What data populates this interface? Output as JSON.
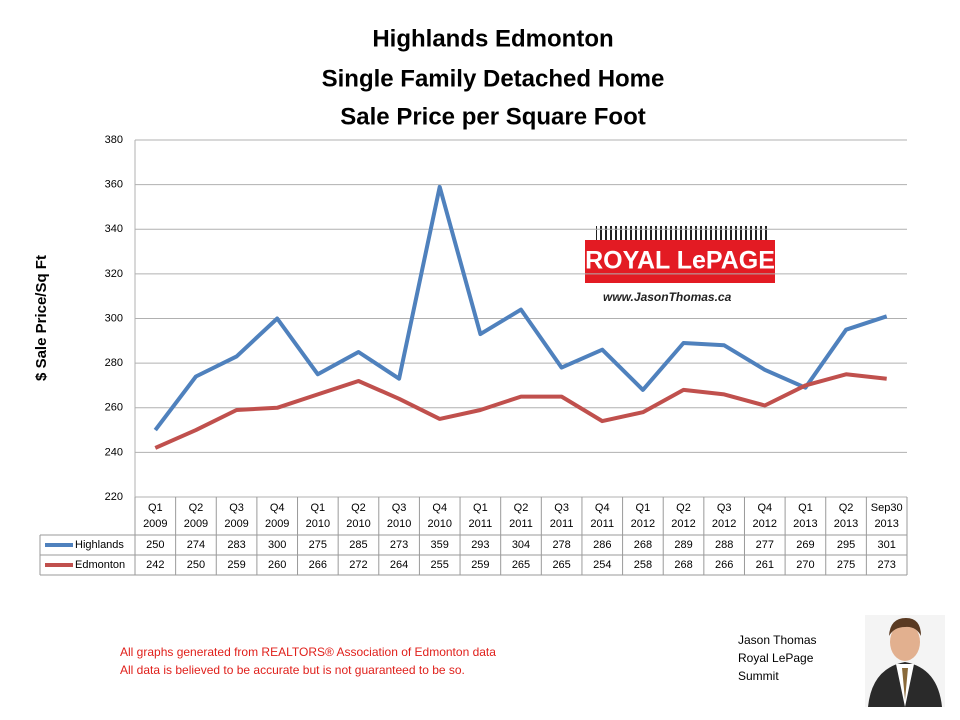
{
  "chart_data": {
    "type": "line",
    "title": [
      "Highlands Edmonton",
      "Single Family Detached Home",
      "Sale Price per Square Foot"
    ],
    "y_label": "$ Sale Price/Sq Ft",
    "categories": [
      [
        "Q1",
        "2009"
      ],
      [
        "Q2",
        "2009"
      ],
      [
        "Q3",
        "2009"
      ],
      [
        "Q4",
        "2009"
      ],
      [
        "Q1",
        "2010"
      ],
      [
        "Q2",
        "2010"
      ],
      [
        "Q3",
        "2010"
      ],
      [
        "Q4",
        "2010"
      ],
      [
        "Q1",
        "2011"
      ],
      [
        "Q2",
        "2011"
      ],
      [
        "Q3",
        "2011"
      ],
      [
        "Q4",
        "2011"
      ],
      [
        "Q1",
        "2012"
      ],
      [
        "Q2",
        "2012"
      ],
      [
        "Q3",
        "2012"
      ],
      [
        "Q4",
        "2012"
      ],
      [
        "Q1",
        "2013"
      ],
      [
        "Q2",
        "2013"
      ],
      [
        "Sep30",
        "2013"
      ]
    ],
    "series": [
      {
        "name": "Highlands",
        "color": "#4f81bd",
        "values": [
          250,
          274,
          283,
          300,
          275,
          285,
          273,
          359,
          293,
          304,
          278,
          286,
          268,
          289,
          288,
          277,
          269,
          295,
          301
        ]
      },
      {
        "name": "Edmonton",
        "color": "#c0504d",
        "values": [
          242,
          250,
          259,
          260,
          266,
          272,
          264,
          255,
          259,
          265,
          265,
          254,
          258,
          268,
          266,
          261,
          270,
          275,
          273
        ]
      }
    ],
    "ylim": [
      220,
      380
    ],
    "yticks": [
      220,
      240,
      260,
      280,
      300,
      320,
      340,
      360,
      380
    ],
    "grid": true
  },
  "logo": {
    "brand": "ROYAL LePAGE",
    "website": "www.JasonThomas.ca"
  },
  "notes": [
    "All graphs generated from REALTORS® Association of Edmonton data",
    "All data is believed to be accurate but is not guaranteed to be so."
  ],
  "agent": [
    "Jason Thomas",
    "Royal LePage",
    "Summit"
  ]
}
